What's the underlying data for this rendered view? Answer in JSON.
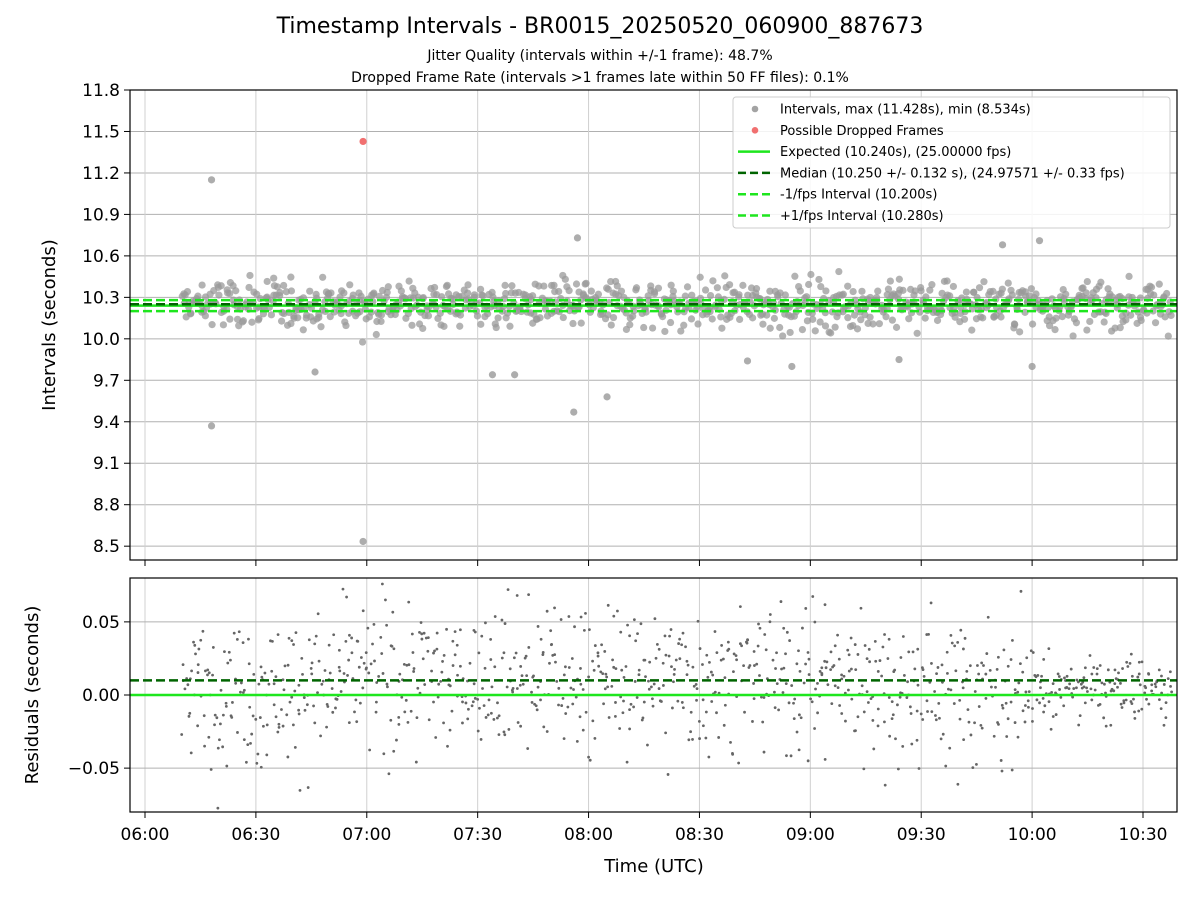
{
  "chart_data": [
    {
      "type": "scatter",
      "title": "Timestamp Intervals - BR0015_20250520_060900_887673",
      "subtitle_1": "Jitter Quality (intervals within +/-1 frame): 48.7%",
      "subtitle_2": "Dropped Frame Rate (intervals >1 frames late within 50 FF files): 0.1%",
      "ylabel": "Intervals (seconds)",
      "ylim": [
        8.4,
        11.8
      ],
      "yticks": [
        "8.5",
        "8.8",
        "9.1",
        "9.4",
        "9.7",
        "10.0",
        "10.3",
        "10.6",
        "10.9",
        "11.2",
        "11.5",
        "11.8"
      ],
      "grid": true,
      "legend_placement": "upper right",
      "legend": [
        {
          "label": "Intervals, max (11.428s), min (8.534s)",
          "kind": "marker",
          "color": "#999999"
        },
        {
          "label": "Possible Dropped Frames",
          "kind": "marker",
          "color": "#f06060"
        },
        {
          "label": "Expected (10.240s), (25.00000 fps)",
          "kind": "solid",
          "color": "#1ee61e"
        },
        {
          "label": "Median (10.250 +/- 0.132 s), (24.97571 +/- 0.33 fps)",
          "kind": "dashed",
          "color": "#006400"
        },
        {
          "label": "-1/fps Interval (10.200s)",
          "kind": "dashed",
          "color": "#1ee61e"
        },
        {
          "label": "+1/fps Interval (10.280s)",
          "kind": "dashed",
          "color": "#1ee61e"
        }
      ],
      "lines": {
        "expected": 10.24,
        "median": 10.25,
        "minus_fps": 10.2,
        "plus_fps": 10.28
      },
      "dropped_frames": [
        {
          "x": "06:59",
          "y": 11.428
        }
      ],
      "outliers": [
        {
          "x": "06:18",
          "y": 11.15
        },
        {
          "x": "06:18",
          "y": 9.37
        },
        {
          "x": "06:59",
          "y": 8.534
        },
        {
          "x": "07:40",
          "y": 9.74
        },
        {
          "x": "07:34",
          "y": 9.74
        },
        {
          "x": "07:56",
          "y": 9.47
        },
        {
          "x": "08:05",
          "y": 9.58
        },
        {
          "x": "06:46",
          "y": 9.76
        },
        {
          "x": "08:43",
          "y": 9.84
        },
        {
          "x": "08:55",
          "y": 9.8
        },
        {
          "x": "09:24",
          "y": 9.85
        },
        {
          "x": "09:52",
          "y": 10.68
        },
        {
          "x": "10:02",
          "y": 10.71
        },
        {
          "x": "07:57",
          "y": 10.73
        },
        {
          "x": "10:00",
          "y": 9.8
        }
      ],
      "bulk_points": {
        "time_start": "06:10",
        "time_end": "10:38",
        "count": 900,
        "center": 10.25,
        "spread": 0.14
      }
    },
    {
      "type": "scatter",
      "xlabel": "Time (UTC)",
      "ylabel": "Residuals (seconds)",
      "ylim": [
        -0.08,
        0.08
      ],
      "yticks": [
        "−0.05",
        "0.00",
        "0.05"
      ],
      "xlim": [
        "05:57",
        "10:38"
      ],
      "xticks": [
        "06:00",
        "06:30",
        "07:00",
        "07:30",
        "08:00",
        "08:30",
        "09:00",
        "09:30",
        "10:00",
        "10:30"
      ],
      "grid": true,
      "lines": {
        "expected": 0.0,
        "median": 0.01
      },
      "residual_points": {
        "time_start": "06:10",
        "time_end": "10:38",
        "count": 1000,
        "spread": 0.04
      }
    }
  ]
}
